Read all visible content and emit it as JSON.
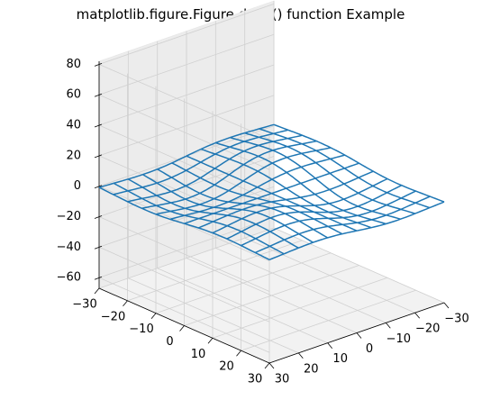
{
  "chart_data": {
    "type": "wireframe-3d",
    "title": "matplotlib.figure.Figure.draw() function Example",
    "xlabel": "",
    "ylabel": "",
    "zlabel": "",
    "x_ticks": [
      -30,
      -20,
      -10,
      0,
      10,
      20,
      30
    ],
    "y_ticks": [
      -30,
      -20,
      -10,
      0,
      10,
      20,
      30
    ],
    "z_ticks": [
      -60,
      -40,
      -20,
      0,
      20,
      40,
      60,
      80
    ],
    "xlim": [
      -30,
      30
    ],
    "ylim": [
      -30,
      30
    ],
    "zlim": [
      -67,
      82
    ],
    "grid": true,
    "view": {
      "elev": 30,
      "azim": -135
    },
    "surface": {
      "function": "x * y * exp(-(x^2 + y^2)/400) / 12",
      "x_range": [
        -30,
        30
      ],
      "y_range": [
        -30,
        30
      ],
      "grid_lines": 13
    },
    "series": [
      {
        "color": "#1f77b4"
      }
    ]
  }
}
